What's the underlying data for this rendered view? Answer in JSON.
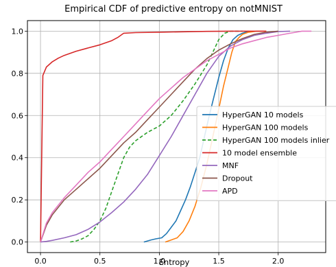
{
  "chart_data": {
    "type": "line",
    "title": "Empirical CDF of predictive entropy on notMNIST",
    "xlabel": "Entropy",
    "ylabel": "",
    "xlim": [
      -0.11,
      2.4
    ],
    "ylim": [
      -0.05,
      1.05
    ],
    "xticks": [
      0.0,
      0.5,
      1.0,
      1.5,
      2.0
    ],
    "xtick_labels": [
      "0.0",
      "0.5",
      "1.0",
      "1.5",
      "2.0"
    ],
    "yticks": [
      0.0,
      0.2,
      0.4,
      0.6,
      0.8,
      1.0
    ],
    "ytick_labels": [
      "0.0",
      "0.2",
      "0.4",
      "0.6",
      "0.8",
      "1.0"
    ],
    "grid": true,
    "legend_position": "center-right",
    "series": [
      {
        "name": "HyperGAN 10 models",
        "color": "#1f77b4",
        "dash": "solid",
        "x": [
          0.87,
          0.9,
          0.93,
          0.97,
          1.02,
          1.06,
          1.1,
          1.14,
          1.18,
          1.22,
          1.26,
          1.3,
          1.34,
          1.38,
          1.42,
          1.46,
          1.5,
          1.54,
          1.58,
          1.62,
          1.66,
          1.7,
          1.75
        ],
        "y": [
          0.0,
          0.005,
          0.01,
          0.015,
          0.02,
          0.04,
          0.07,
          0.1,
          0.15,
          0.2,
          0.26,
          0.33,
          0.4,
          0.5,
          0.6,
          0.69,
          0.78,
          0.86,
          0.92,
          0.96,
          0.98,
          0.99,
          1.0
        ]
      },
      {
        "name": "HyperGAN 100 models",
        "color": "#ff7f0e",
        "dash": "solid",
        "x": [
          1.05,
          1.1,
          1.15,
          1.2,
          1.25,
          1.3,
          1.35,
          1.4,
          1.45,
          1.5,
          1.54,
          1.58,
          1.61,
          1.64,
          1.67,
          1.7,
          1.75,
          1.82,
          1.9
        ],
        "y": [
          0.0,
          0.01,
          0.02,
          0.05,
          0.1,
          0.17,
          0.26,
          0.37,
          0.5,
          0.63,
          0.74,
          0.83,
          0.9,
          0.95,
          0.97,
          0.985,
          0.995,
          1.0,
          1.0
        ]
      },
      {
        "name": "HyperGAN 100 models inlier",
        "color": "#2ca02c",
        "dash": "dashed",
        "x": [
          0.25,
          0.3,
          0.35,
          0.4,
          0.45,
          0.5,
          0.55,
          0.6,
          0.65,
          0.7,
          0.75,
          0.8,
          0.9,
          1.0,
          1.1,
          1.2,
          1.3,
          1.4,
          1.45,
          1.5,
          1.55,
          1.6,
          1.65,
          1.7
        ],
        "y": [
          0.0,
          0.005,
          0.015,
          0.03,
          0.06,
          0.1,
          0.16,
          0.24,
          0.32,
          0.4,
          0.45,
          0.48,
          0.52,
          0.55,
          0.6,
          0.67,
          0.75,
          0.84,
          0.9,
          0.96,
          0.99,
          1.0,
          1.0,
          1.0
        ]
      },
      {
        "name": "10 model ensemble",
        "color": "#d62728",
        "dash": "solid",
        "x": [
          0.0,
          0.02,
          0.05,
          0.1,
          0.15,
          0.2,
          0.3,
          0.4,
          0.5,
          0.6,
          0.65,
          0.7,
          0.8,
          1.0,
          1.2,
          1.4,
          1.6,
          1.8,
          1.9
        ],
        "y": [
          0.0,
          0.79,
          0.83,
          0.855,
          0.872,
          0.885,
          0.905,
          0.92,
          0.935,
          0.955,
          0.97,
          0.99,
          0.993,
          0.995,
          0.997,
          0.999,
          1.0,
          1.0,
          1.0
        ]
      },
      {
        "name": "MNF",
        "color": "#9467bd",
        "dash": "solid",
        "x": [
          0.0,
          0.05,
          0.1,
          0.2,
          0.3,
          0.4,
          0.5,
          0.6,
          0.7,
          0.8,
          0.9,
          1.0,
          1.1,
          1.2,
          1.3,
          1.4,
          1.5,
          1.6,
          1.7,
          1.8,
          1.9,
          2.0,
          2.1
        ],
        "y": [
          0.0,
          0.003,
          0.008,
          0.02,
          0.035,
          0.06,
          0.095,
          0.14,
          0.19,
          0.25,
          0.32,
          0.41,
          0.5,
          0.6,
          0.7,
          0.8,
          0.88,
          0.93,
          0.96,
          0.98,
          0.99,
          0.998,
          1.0
        ]
      },
      {
        "name": "Dropout",
        "color": "#8c564b",
        "dash": "solid",
        "x": [
          0.0,
          0.05,
          0.1,
          0.2,
          0.3,
          0.4,
          0.5,
          0.6,
          0.7,
          0.8,
          0.9,
          1.0,
          1.1,
          1.2,
          1.3,
          1.4,
          1.5,
          1.6,
          1.7,
          1.8,
          1.9,
          2.0
        ],
        "y": [
          0.0,
          0.08,
          0.13,
          0.2,
          0.25,
          0.3,
          0.35,
          0.41,
          0.47,
          0.52,
          0.58,
          0.64,
          0.7,
          0.76,
          0.82,
          0.87,
          0.91,
          0.94,
          0.965,
          0.985,
          0.995,
          1.0
        ]
      },
      {
        "name": "APD",
        "color": "#e377c2",
        "dash": "solid",
        "x": [
          0.0,
          0.05,
          0.1,
          0.2,
          0.3,
          0.4,
          0.5,
          0.6,
          0.7,
          0.8,
          0.9,
          1.0,
          1.1,
          1.2,
          1.3,
          1.4,
          1.5,
          1.6,
          1.7,
          1.8,
          1.9,
          2.0,
          2.1,
          2.2,
          2.28
        ],
        "y": [
          0.0,
          0.09,
          0.14,
          0.21,
          0.27,
          0.33,
          0.38,
          0.44,
          0.5,
          0.56,
          0.62,
          0.68,
          0.73,
          0.78,
          0.82,
          0.86,
          0.89,
          0.92,
          0.94,
          0.955,
          0.97,
          0.98,
          0.99,
          1.0,
          1.0
        ]
      }
    ]
  }
}
